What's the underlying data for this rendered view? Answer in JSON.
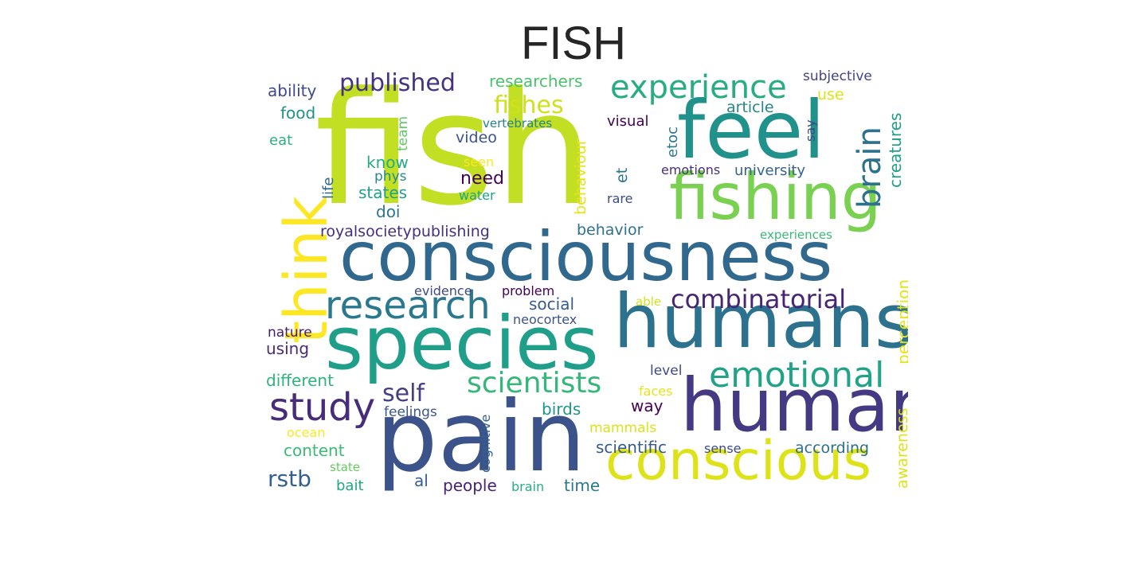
{
  "title": "FISH",
  "words": [
    {
      "t": "fish",
      "c": "#c2df23"
    },
    {
      "t": "feel",
      "c": "#21918c"
    },
    {
      "t": "fishing",
      "c": "#7ad151"
    },
    {
      "t": "consciousness",
      "c": "#31688e"
    },
    {
      "t": "humans",
      "c": "#2c728e"
    },
    {
      "t": "species",
      "c": "#1f9e89"
    },
    {
      "t": "human",
      "c": "#443983"
    },
    {
      "t": "pain",
      "c": "#3b528b"
    },
    {
      "t": "conscious",
      "c": "#dde318"
    },
    {
      "t": "think",
      "c": "#fde725"
    },
    {
      "t": "experience",
      "c": "#27ad81"
    },
    {
      "t": "research",
      "c": "#2a788e"
    },
    {
      "t": "emotional",
      "c": "#20a386"
    },
    {
      "t": "combinatorial",
      "c": "#482475"
    },
    {
      "t": "study",
      "c": "#472c7a"
    },
    {
      "t": "scientists",
      "c": "#35b779"
    },
    {
      "t": "brain",
      "c": "#2c728e"
    },
    {
      "t": "published",
      "c": "#46327e"
    },
    {
      "t": "fishes",
      "c": "#d0e11c"
    },
    {
      "t": "self",
      "c": "#433e85"
    },
    {
      "t": "rstb",
      "c": "#355f8d"
    },
    {
      "t": "researchers",
      "c": "#4ac16d"
    },
    {
      "t": "ability",
      "c": "#3e4989"
    },
    {
      "t": "food",
      "c": "#21918c"
    },
    {
      "t": "eat",
      "c": "#2db27d"
    },
    {
      "t": "team",
      "c": "#5ec962"
    },
    {
      "t": "vertebrates",
      "c": "#26828e"
    },
    {
      "t": "video",
      "c": "#3b528b"
    },
    {
      "t": "visual",
      "c": "#440154"
    },
    {
      "t": "etoc",
      "c": "#2a788e"
    },
    {
      "t": "article",
      "c": "#25848e"
    },
    {
      "t": "use",
      "c": "#dde318"
    },
    {
      "t": "subjective",
      "c": "#414487"
    },
    {
      "t": "say",
      "c": "#3e4989"
    },
    {
      "t": "creatures",
      "c": "#1f9e89"
    },
    {
      "t": "behaviour",
      "c": "#e5e419"
    },
    {
      "t": "life",
      "c": "#31688e"
    },
    {
      "t": "know",
      "c": "#25ab82"
    },
    {
      "t": "seen",
      "c": "#fde725"
    },
    {
      "t": "phys",
      "c": "#23898e"
    },
    {
      "t": "need",
      "c": "#440154"
    },
    {
      "t": "et",
      "c": "#2a788e"
    },
    {
      "t": "emotions",
      "c": "#46307e"
    },
    {
      "t": "university",
      "c": "#33638d"
    },
    {
      "t": "states",
      "c": "#1fa187"
    },
    {
      "t": "water",
      "c": "#20a486"
    },
    {
      "t": "rare",
      "c": "#3e4a89"
    },
    {
      "t": "doi",
      "c": "#2a768e"
    },
    {
      "t": "royalsocietypublishing",
      "c": "#472f7d"
    },
    {
      "t": "behavior",
      "c": "#2c728e"
    },
    {
      "t": "experiences",
      "c": "#3aba76"
    },
    {
      "t": "perception",
      "c": "#e5e419"
    },
    {
      "t": "evidence",
      "c": "#3e4a89"
    },
    {
      "t": "problem",
      "c": "#440154"
    },
    {
      "t": "social",
      "c": "#375b8d"
    },
    {
      "t": "able",
      "c": "#d2e21b"
    },
    {
      "t": "neocortex",
      "c": "#3b528b"
    },
    {
      "t": "nature",
      "c": "#481a6c"
    },
    {
      "t": "using",
      "c": "#472a7a"
    },
    {
      "t": "different",
      "c": "#2fb47c"
    },
    {
      "t": "level",
      "c": "#3e4989"
    },
    {
      "t": "faces",
      "c": "#e7e419"
    },
    {
      "t": "way",
      "c": "#440154"
    },
    {
      "t": "feelings",
      "c": "#39568c"
    },
    {
      "t": "birds",
      "c": "#1f958b"
    },
    {
      "t": "cognitive",
      "c": "#33638d"
    },
    {
      "t": "mammals",
      "c": "#dae319"
    },
    {
      "t": "awareness",
      "c": "#dde318"
    },
    {
      "t": "ocean",
      "c": "#fde725"
    },
    {
      "t": "content",
      "c": "#3bbb75"
    },
    {
      "t": "scientific",
      "c": "#365c8d"
    },
    {
      "t": "sense",
      "c": "#3e4989"
    },
    {
      "t": "according",
      "c": "#2d708e"
    },
    {
      "t": "state",
      "c": "#65cb5e"
    },
    {
      "t": "bait",
      "c": "#21a685"
    },
    {
      "t": "al",
      "c": "#355f8d"
    },
    {
      "t": "people",
      "c": "#482173"
    },
    {
      "t": "brain",
      "c": "#29af7f"
    },
    {
      "t": "time",
      "c": "#2a778e"
    }
  ]
}
